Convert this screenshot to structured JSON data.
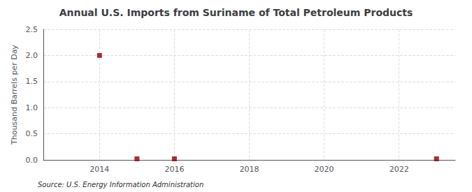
{
  "chart_data": {
    "type": "scatter",
    "title": "Annual U.S. Imports from Suriname of Total Petroleum Products",
    "ylabel": "Thousand Barrels per Day",
    "source": "Source: U.S. Energy Information Administration",
    "x": [
      2014,
      2015,
      2016,
      2023
    ],
    "values": [
      2.0,
      0.02,
      0.02,
      0.02
    ],
    "color": "#8B0000",
    "marker": "square",
    "xlim": [
      2012.5,
      2023.5
    ],
    "xticks": [
      2014,
      2016,
      2018,
      2020,
      2022
    ],
    "ylim": [
      0,
      2.5
    ],
    "yticks": [
      {
        "value": 0,
        "label": "0.0"
      },
      0.5,
      {
        "value": 1,
        "label": "1.0"
      },
      1.5,
      {
        "value": 2,
        "label": "2.0"
      },
      2.5
    ],
    "grid": true
  }
}
